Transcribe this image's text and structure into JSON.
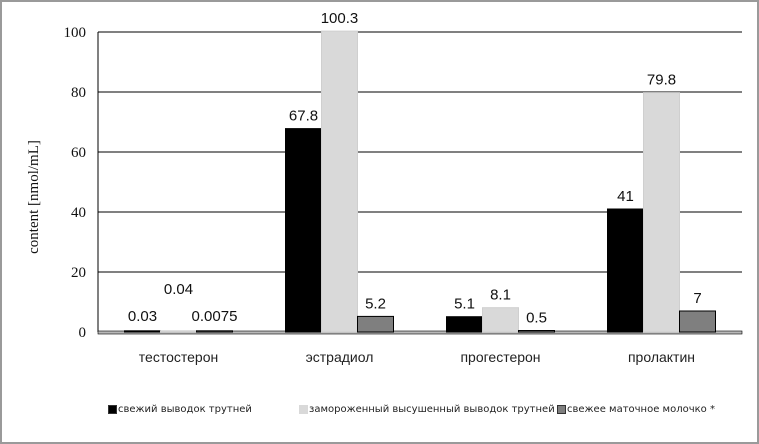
{
  "chart_data": {
    "type": "bar",
    "ylabel": "content [nmol/mL]",
    "xlabel": "",
    "ylim": [
      0,
      100
    ],
    "yticks": [
      "0",
      "20",
      "40",
      "60",
      "80",
      "100"
    ],
    "categories": [
      "тестостерон",
      "эстрадиол",
      "прогестерон",
      "пролактин"
    ],
    "series": [
      {
        "name": "свежий выводок трутней",
        "color": "#000000",
        "values": [
          0.03,
          67.8,
          5.1,
          41
        ],
        "labels": [
          "0.03",
          "67.8",
          "5.1",
          "41"
        ]
      },
      {
        "name": "замороженный высушенный выводок трутней",
        "color": "#d9d9d9",
        "values": [
          0.04,
          100.3,
          8.1,
          79.8
        ],
        "labels": [
          "0.04",
          "100.3",
          "8.1",
          "79.8"
        ]
      },
      {
        "name": "свежее маточное молочко *",
        "color": "#7f7f7f",
        "values": [
          0.0075,
          5.2,
          0.5,
          7
        ],
        "labels": [
          "0.0075",
          "5.2",
          "0.5",
          "7"
        ]
      }
    ],
    "grid": true,
    "legend_position": "bottom"
  }
}
